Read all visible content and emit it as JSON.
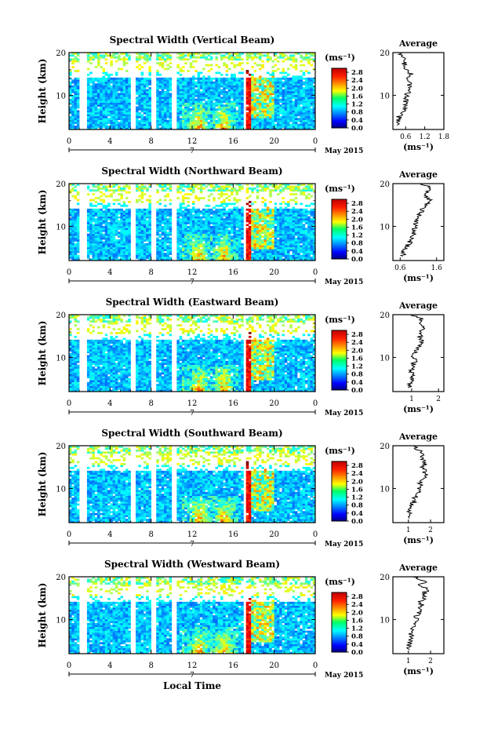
{
  "figure": {
    "xlabel": "Local Time",
    "date_label": "May 2015",
    "day_label": "7",
    "unit_label": "(ms⁻¹)",
    "avg_title": "Average",
    "avg_xlabel": "(ms⁻¹)"
  },
  "chart_data": [
    {
      "type": "heatmap",
      "title": "Spectral Width (Vertical Beam)",
      "ylabel": "Height (km)",
      "xlabel": "",
      "x_ticks": [
        "0",
        "4",
        "8",
        "12",
        "16",
        "20",
        "0"
      ],
      "xlim": [
        0,
        24
      ],
      "y_ticks": [
        "20",
        "10"
      ],
      "ylim": [
        2,
        20
      ],
      "colorbar": {
        "label": "(ms⁻¹)",
        "ticks": [
          "0.0",
          "0.4",
          "0.8",
          "1.2",
          "1.6",
          "2.0",
          "2.4",
          "2.8"
        ],
        "range": [
          0,
          3.0
        ]
      },
      "data_gaps_hours": [
        [
          1.0,
          1.8
        ],
        [
          6.0,
          6.5
        ],
        [
          8.0,
          8.4
        ],
        [
          10.1,
          10.5
        ],
        [
          17.1,
          17.3
        ]
      ],
      "average_profile": {
        "xlim": [
          0.2,
          1.8
        ],
        "x_ticks": [
          "0.6",
          "1.2",
          "1.8"
        ],
        "y_ticks": [
          "20",
          "10"
        ],
        "heights_km": [
          3,
          4,
          5,
          6,
          7,
          8,
          9,
          10,
          11,
          12,
          13,
          14,
          15,
          16,
          17,
          18,
          19,
          20
        ],
        "values": [
          0.35,
          0.35,
          0.4,
          0.5,
          0.55,
          0.6,
          0.62,
          0.65,
          0.7,
          0.75,
          0.7,
          0.65,
          0.75,
          0.6,
          0.55,
          0.6,
          0.5,
          0.45
        ]
      }
    },
    {
      "type": "heatmap",
      "title": "Spectral Width (Northward Beam)",
      "ylabel": "Height (km)",
      "xlabel": "",
      "x_ticks": [
        "0",
        "4",
        "8",
        "12",
        "16",
        "20",
        "0"
      ],
      "xlim": [
        0,
        24
      ],
      "y_ticks": [
        "20",
        "10"
      ],
      "ylim": [
        2,
        20
      ],
      "colorbar": {
        "label": "(ms⁻¹)",
        "ticks": [
          "0.0",
          "0.4",
          "0.8",
          "1.2",
          "1.6",
          "2.0",
          "2.4",
          "2.8"
        ],
        "range": [
          0,
          3.0
        ]
      },
      "data_gaps_hours": [
        [
          1.0,
          1.8
        ],
        [
          6.0,
          6.5
        ],
        [
          8.0,
          8.4
        ],
        [
          10.1,
          10.5
        ],
        [
          17.1,
          17.3
        ]
      ],
      "average_profile": {
        "xlim": [
          0.4,
          1.8
        ],
        "x_ticks": [
          "0.6",
          "1.6"
        ],
        "y_ticks": [
          "20",
          "10"
        ],
        "heights_km": [
          3,
          4,
          5,
          6,
          7,
          8,
          9,
          10,
          11,
          12,
          13,
          14,
          15,
          16,
          17,
          18,
          19,
          20
        ],
        "values": [
          0.65,
          0.7,
          0.75,
          0.85,
          0.9,
          0.95,
          1.0,
          1.0,
          1.05,
          1.1,
          1.15,
          1.2,
          1.3,
          1.4,
          1.35,
          1.3,
          1.45,
          1.2
        ]
      }
    },
    {
      "type": "heatmap",
      "title": "Spectral Width (Eastward Beam)",
      "ylabel": "Height (km)",
      "xlabel": "",
      "x_ticks": [
        "0",
        "4",
        "8",
        "12",
        "16",
        "20",
        "0"
      ],
      "xlim": [
        0,
        24
      ],
      "y_ticks": [
        "20",
        "10"
      ],
      "ylim": [
        2,
        20
      ],
      "colorbar": {
        "label": "(ms⁻¹)",
        "ticks": [
          "0.0",
          "0.4",
          "0.8",
          "1.2",
          "1.6",
          "2.0",
          "2.4",
          "2.8"
        ],
        "range": [
          0,
          3.0
        ]
      },
      "data_gaps_hours": [
        [
          1.0,
          1.8
        ],
        [
          6.0,
          6.5
        ],
        [
          8.0,
          8.4
        ],
        [
          10.1,
          10.5
        ],
        [
          17.1,
          17.3
        ]
      ],
      "average_profile": {
        "xlim": [
          0.3,
          2.2
        ],
        "x_ticks": [
          "1",
          "2"
        ],
        "y_ticks": [
          "20",
          "10"
        ],
        "heights_km": [
          3,
          4,
          5,
          6,
          7,
          8,
          9,
          10,
          11,
          12,
          13,
          14,
          15,
          16,
          17,
          18,
          19,
          20
        ],
        "values": [
          0.9,
          0.95,
          1.0,
          1.05,
          1.0,
          1.05,
          1.1,
          1.05,
          1.15,
          1.2,
          1.3,
          1.4,
          1.3,
          1.35,
          1.5,
          1.25,
          1.4,
          1.0
        ]
      }
    },
    {
      "type": "heatmap",
      "title": "Spectral Width (Southward Beam)",
      "ylabel": "Height (km)",
      "xlabel": "",
      "x_ticks": [
        "0",
        "4",
        "8",
        "12",
        "16",
        "20",
        "0"
      ],
      "xlim": [
        0,
        24
      ],
      "y_ticks": [
        "20",
        "10"
      ],
      "ylim": [
        2,
        20
      ],
      "colorbar": {
        "label": "(ms⁻¹)",
        "ticks": [
          "0.0",
          "0.4",
          "0.8",
          "1.2",
          "1.6",
          "2.0",
          "2.4",
          "2.8"
        ],
        "range": [
          0,
          3.0
        ]
      },
      "data_gaps_hours": [
        [
          1.0,
          1.8
        ],
        [
          6.0,
          6.5
        ],
        [
          8.0,
          8.4
        ],
        [
          10.1,
          10.5
        ],
        [
          17.1,
          17.3
        ]
      ],
      "average_profile": {
        "xlim": [
          0.3,
          2.6
        ],
        "x_ticks": [
          "1",
          "2"
        ],
        "y_ticks": [
          "20",
          "10"
        ],
        "heights_km": [
          3,
          4,
          5,
          6,
          7,
          8,
          9,
          10,
          11,
          12,
          13,
          14,
          15,
          16,
          17,
          18,
          19,
          20
        ],
        "values": [
          1.0,
          1.05,
          1.1,
          1.2,
          1.25,
          1.3,
          1.4,
          1.45,
          1.55,
          1.6,
          1.75,
          1.7,
          1.65,
          1.8,
          1.6,
          1.7,
          1.45,
          1.3
        ]
      }
    },
    {
      "type": "heatmap",
      "title": "Spectral Width (Westward Beam)",
      "ylabel": "Height (km)",
      "xlabel": "Local Time",
      "x_ticks": [
        "0",
        "4",
        "8",
        "12",
        "16",
        "20",
        "0"
      ],
      "xlim": [
        0,
        24
      ],
      "y_ticks": [
        "20",
        "10"
      ],
      "ylim": [
        2,
        20
      ],
      "colorbar": {
        "label": "(ms⁻¹)",
        "ticks": [
          "0.0",
          "0.4",
          "0.8",
          "1.2",
          "1.6",
          "2.0",
          "2.4",
          "2.8"
        ],
        "range": [
          0,
          3.0
        ]
      },
      "data_gaps_hours": [
        [
          1.0,
          1.8
        ],
        [
          6.0,
          6.5
        ],
        [
          8.0,
          8.4
        ],
        [
          10.1,
          10.5
        ],
        [
          17.1,
          17.3
        ]
      ],
      "average_profile": {
        "xlim": [
          0.3,
          2.6
        ],
        "x_ticks": [
          "1",
          "2"
        ],
        "y_ticks": [
          "20",
          "10"
        ],
        "heights_km": [
          3,
          4,
          5,
          6,
          7,
          8,
          9,
          10,
          11,
          12,
          13,
          14,
          15,
          16,
          17,
          18,
          19,
          20
        ],
        "values": [
          1.0,
          1.05,
          1.05,
          1.1,
          1.15,
          1.2,
          1.3,
          1.35,
          1.4,
          1.5,
          1.6,
          1.55,
          1.7,
          1.65,
          1.9,
          1.5,
          1.8,
          1.2
        ]
      }
    }
  ]
}
